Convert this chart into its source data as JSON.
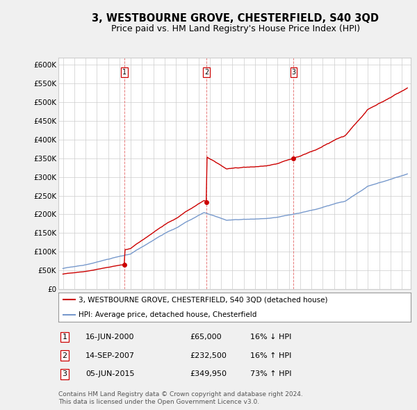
{
  "title": "3, WESTBOURNE GROVE, CHESTERFIELD, S40 3QD",
  "subtitle": "Price paid vs. HM Land Registry's House Price Index (HPI)",
  "legend_label_red": "3, WESTBOURNE GROVE, CHESTERFIELD, S40 3QD (detached house)",
  "legend_label_blue": "HPI: Average price, detached house, Chesterfield",
  "footer_line1": "Contains HM Land Registry data © Crown copyright and database right 2024.",
  "footer_line2": "This data is licensed under the Open Government Licence v3.0.",
  "sales": [
    {
      "num": 1,
      "date": "16-JUN-2000",
      "price": "£65,000",
      "change": "16% ↓ HPI"
    },
    {
      "num": 2,
      "date": "14-SEP-2007",
      "price": "£232,500",
      "change": "16% ↑ HPI"
    },
    {
      "num": 3,
      "date": "05-JUN-2015",
      "price": "£349,950",
      "change": "73% ↑ HPI"
    }
  ],
  "sale_dates_decimal": [
    2000.458,
    2007.708,
    2015.425
  ],
  "sale_prices": [
    65000,
    232500,
    349950
  ],
  "ylim": [
    0,
    620000
  ],
  "yticks": [
    0,
    50000,
    100000,
    150000,
    200000,
    250000,
    300000,
    350000,
    400000,
    450000,
    500000,
    550000,
    600000
  ],
  "ytick_labels": [
    "£0",
    "£50K",
    "£100K",
    "£150K",
    "£200K",
    "£250K",
    "£300K",
    "£350K",
    "£400K",
    "£450K",
    "£500K",
    "£550K",
    "£600K"
  ],
  "xlim_start": 1994.6,
  "xlim_end": 2025.8,
  "bg_color": "#f0f0f0",
  "plot_bg_color": "#ffffff",
  "grid_color": "#cccccc",
  "red_color": "#cc0000",
  "blue_color": "#7799cc",
  "sale_marker_color": "#cc0000",
  "vline_color": "#dd4444",
  "title_fontsize": 10.5,
  "subtitle_fontsize": 9,
  "tick_fontsize": 7.5,
  "legend_fontsize": 7.5,
  "table_fontsize": 8,
  "footer_fontsize": 6.5
}
